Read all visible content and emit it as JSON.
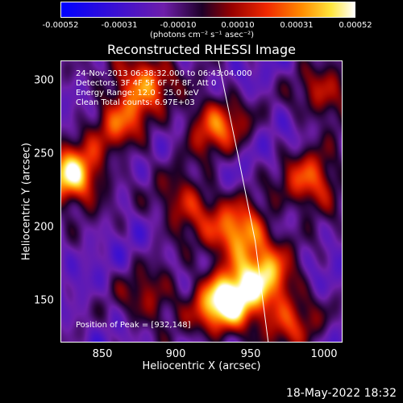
{
  "colorbar": {
    "labels": [
      "-0.00052",
      "-0.00031",
      "-0.00010",
      "0.00010",
      "0.00031",
      "0.00052"
    ],
    "units": "(photons cm⁻² s⁻¹ asec⁻²)"
  },
  "chart_data": {
    "type": "heatmap",
    "title": "Reconstructed RHESSI Image",
    "xlabel": "Heliocentric X (arcsec)",
    "ylabel": "Heliocentric Y (arcsec)",
    "xlim": [
      820,
      1012
    ],
    "ylim": [
      120,
      313
    ],
    "x_ticks": [
      "850",
      "900",
      "950",
      "1000"
    ],
    "x_tick_values": [
      850,
      900,
      950,
      1000
    ],
    "y_ticks": [
      "300",
      "250",
      "200",
      "150"
    ],
    "y_tick_values": [
      300,
      250,
      200,
      150
    ],
    "annotations": {
      "time": "24-Nov-2013 06:38:32.000 to 06:43:04.000",
      "detectors": "Detectors: 3F 4F 5F 6F 7F 8F, Att 0",
      "energy": "Energy Range: 12.0 - 25.0 keV",
      "clean": "Clean      Total counts: 6.97E+03",
      "peak": "Position of Peak = [932,148]"
    },
    "peak": [
      932,
      148
    ],
    "limb_curve": [
      [
        927,
        313
      ],
      [
        940,
        250
      ],
      [
        952,
        190
      ],
      [
        961,
        120
      ]
    ],
    "blobs": [
      {
        "x": 932,
        "y": 148,
        "amp": 1.0
      },
      {
        "x": 827,
        "y": 235,
        "amp": 0.85
      },
      {
        "x": 942,
        "y": 195,
        "amp": 0.7
      },
      {
        "x": 958,
        "y": 165,
        "amp": 0.65
      },
      {
        "x": 875,
        "y": 300,
        "amp": 0.6
      },
      {
        "x": 925,
        "y": 270,
        "amp": 0.55
      },
      {
        "x": 990,
        "y": 230,
        "amp": 0.55
      },
      {
        "x": 905,
        "y": 215,
        "amp": 0.45
      },
      {
        "x": 860,
        "y": 270,
        "amp": 0.45
      },
      {
        "x": 1000,
        "y": 290,
        "amp": 0.4
      },
      {
        "x": 880,
        "y": 150,
        "amp": 0.35
      },
      {
        "x": 975,
        "y": 135,
        "amp": 0.4
      }
    ]
  },
  "footer": "18-May-2022 18:32"
}
